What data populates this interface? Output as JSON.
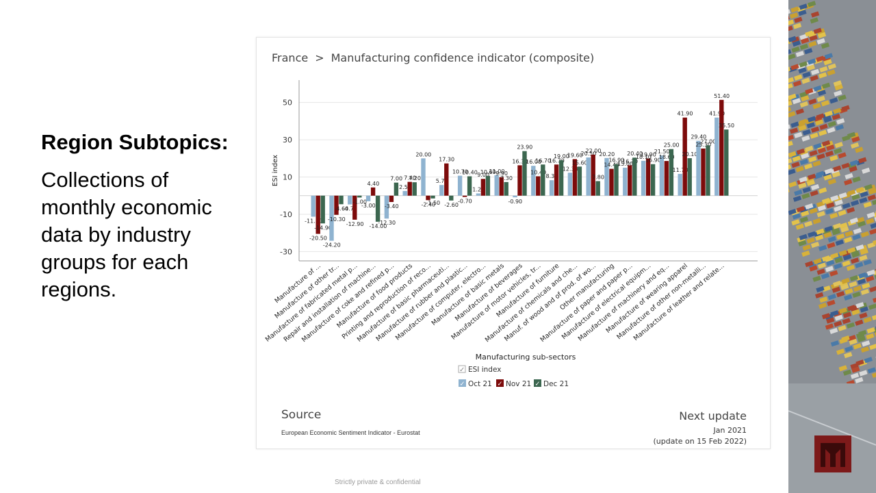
{
  "slide": {
    "title": "Region Subtopics:",
    "description": "Collections of monthly economic data by industry groups for each regions.",
    "footer": "Strictly private & confidential"
  },
  "breadcrumb": {
    "region": "France",
    "separator": ">",
    "indicator": "Manufacturing confidence indicator (composite)"
  },
  "source": {
    "heading": "Source",
    "text": "European Economic Sentiment Indicator - Eurostat"
  },
  "next_update": {
    "heading": "Next update",
    "date": "Jan 2021",
    "note": "(update on 15 Feb 2022)"
  },
  "colors": {
    "oct": "#8fb3d0",
    "nov": "#7d0b0b",
    "dec": "#3c6750",
    "logo": "#7d1a1a"
  },
  "chart_data": {
    "type": "bar",
    "xlabel": "Manufacturing sub-sectors",
    "ylabel": "ESI index",
    "ylim": [
      -35,
      62
    ],
    "yticks": [
      -30,
      -10,
      10,
      30,
      50
    ],
    "categories": [
      "Manufacture of ...",
      "Manufacture of other tr...",
      "Manufacture of fabricated metal p...",
      "Repair and installation of machine...",
      "Manufacture of coke and refined p...",
      "Manufacture of food products",
      "Printing and reproduction of reco...",
      "Manufacture of basic pharmaceuti...",
      "Manufacture of rubber and plastic...",
      "Manufacture of computer, electro...",
      "Manufacture of basic metals",
      "Manufacture of beverages",
      "Manufacture of motor vehicles, tr...",
      "Manufacture of furniture",
      "Manufacture of chemicals and che...",
      "Manuf. of wood and of prod. of wo...",
      "Other manufacturing",
      "Manufacture of paper and paper p...",
      "Manufacture of electrical equipm...",
      "Manufacture of machinery and eq...",
      "Manufacture of wearing apparel",
      "Manufacture of other non-metalli...",
      "Manufacture of leather and relate..."
    ],
    "series": [
      {
        "name": "Oct 21",
        "values": [
          -11.3,
          -24.2,
          -4.7,
          -3.0,
          -12.3,
          2.5,
          20.0,
          5.7,
          10.7,
          1.2,
          11.0,
          -0.9,
          16.0,
          8.3,
          12.3,
          20.5,
          20.2,
          15.0,
          18.7,
          21.5,
          11.7,
          29.4,
          41.9
        ]
      },
      {
        "name": "Nov 21",
        "values": [
          -20.5,
          -10.3,
          -12.9,
          4.4,
          -3.4,
          7.4,
          -2.4,
          17.3,
          -0.7,
          9.0,
          9.9,
          16.3,
          10.4,
          16.7,
          19.6,
          22.0,
          14.4,
          16.3,
          19.9,
          18.6,
          41.9,
          25.3,
          51.4
        ]
      },
      {
        "name": "Dec 21",
        "values": [
          -14.9,
          -4.6,
          -1.0,
          -14.0,
          7.0,
          7.2,
          -1.5,
          -2.6,
          10.4,
          10.6,
          7.3,
          23.9,
          16.7,
          19.0,
          15.6,
          7.8,
          16.9,
          20.4,
          16.9,
          25.0,
          20.1,
          27.0,
          35.5
        ]
      }
    ],
    "legend": {
      "group_label": "ESI index",
      "items": [
        "Oct 21",
        "Nov 21",
        "Dec 21"
      ]
    }
  }
}
